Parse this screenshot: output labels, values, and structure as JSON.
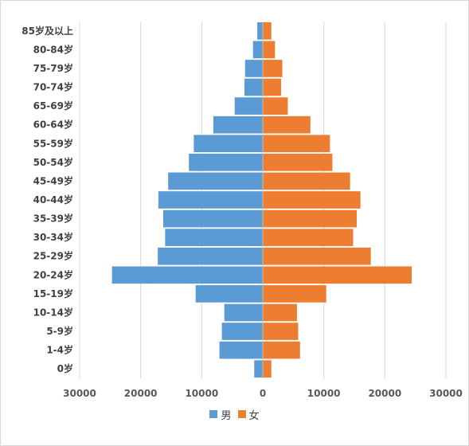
{
  "chart_data": {
    "type": "bar",
    "orientation": "horizontal",
    "subtype": "population-pyramid",
    "title": "",
    "xlabel": "",
    "ylabel": "",
    "categories": [
      "0岁",
      "1-4岁",
      "5-9岁",
      "10-14岁",
      "15-19岁",
      "20-24岁",
      "25-29岁",
      "30-34岁",
      "35-39岁",
      "40-44岁",
      "45-49岁",
      "50-54岁",
      "55-59岁",
      "60-64岁",
      "65-69岁",
      "70-74岁",
      "75-79岁",
      "80-84岁",
      "85岁及以上"
    ],
    "series": [
      {
        "name": "男",
        "color": "#5b9bd5",
        "side": "left",
        "values": [
          1400,
          7100,
          6700,
          6300,
          11000,
          24700,
          17200,
          16000,
          16300,
          17100,
          15500,
          12100,
          11300,
          8100,
          4600,
          3000,
          2900,
          1600,
          900
        ]
      },
      {
        "name": "女",
        "color": "#ed7d31",
        "side": "right",
        "values": [
          1400,
          6100,
          5800,
          5600,
          10400,
          24400,
          17700,
          14800,
          15400,
          16000,
          14300,
          11400,
          11000,
          7800,
          4100,
          3000,
          3200,
          2000,
          1400
        ]
      }
    ],
    "xlim": [
      -30000,
      30000
    ],
    "xticks": [
      "30000",
      "20000",
      "10000",
      "0",
      "10000",
      "20000",
      "30000"
    ],
    "grid": "vertical",
    "legend_position": "bottom"
  }
}
